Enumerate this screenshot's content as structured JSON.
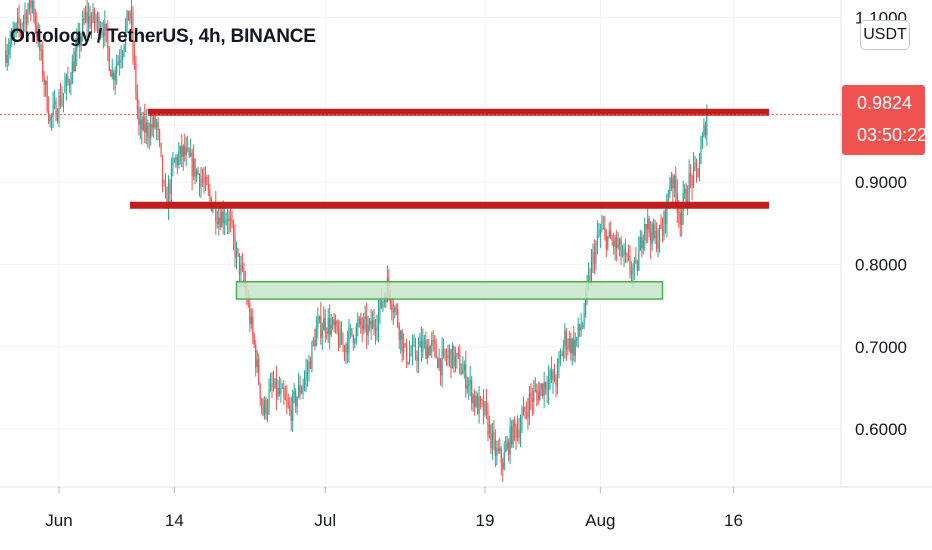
{
  "header": {
    "symbol_title": "Ontology / TetherUS, 4h, BINANCE",
    "currency_button": "USDT"
  },
  "last_price": {
    "price": "0.9824",
    "countdown": "03:50:22",
    "color": "#ef5350"
  },
  "colors": {
    "up_candle": "#26a69a",
    "down_candle": "#ef5350",
    "resistance_line": "#c21d1d",
    "support_zone_fill": "#c8e6c9",
    "support_zone_border": "#4caf50",
    "axis_text": "#131722",
    "gridline": "#f0f3fa"
  },
  "chart_data": {
    "type": "candlestick",
    "title": "Ontology / TetherUS, 4h, BINANCE",
    "xlabel": "",
    "ylabel": "",
    "y_range": [
      0.525,
      1.125
    ],
    "y_ticks": [
      {
        "label": "1.1000",
        "value": 1.1
      },
      {
        "label": "0.9000",
        "value": 0.9
      },
      {
        "label": "0.8000",
        "value": 0.8
      },
      {
        "label": "0.7000",
        "value": 0.7
      },
      {
        "label": "0.6000",
        "value": 0.6
      }
    ],
    "x_ticks": [
      {
        "label": "Jun",
        "date": "2021-06-01"
      },
      {
        "label": "14",
        "date": "2021-06-14"
      },
      {
        "label": "Jul",
        "date": "2021-07-01"
      },
      {
        "label": "19",
        "date": "2021-07-19"
      },
      {
        "label": "Aug",
        "date": "2021-08-01"
      },
      {
        "label": "16",
        "date": "2021-08-16"
      }
    ],
    "price_path": [
      [
        "2021-05-26",
        1.06
      ],
      [
        "2021-05-29",
        1.12
      ],
      [
        "2021-05-31",
        0.975
      ],
      [
        "2021-06-02",
        1.02
      ],
      [
        "2021-06-04",
        1.1
      ],
      [
        "2021-06-06",
        1.09
      ],
      [
        "2021-06-07",
        1.03
      ],
      [
        "2021-06-08",
        1.06
      ],
      [
        "2021-06-09",
        1.11
      ],
      [
        "2021-06-10",
        0.965
      ],
      [
        "2021-06-11",
        0.965
      ],
      [
        "2021-06-12",
        0.97
      ],
      [
        "2021-06-13",
        0.87
      ],
      [
        "2021-06-14",
        0.925
      ],
      [
        "2021-06-15",
        0.935
      ],
      [
        "2021-06-17",
        0.905
      ],
      [
        "2021-06-18",
        0.88
      ],
      [
        "2021-06-19",
        0.86
      ],
      [
        "2021-06-20",
        0.86
      ],
      [
        "2021-06-21",
        0.81
      ],
      [
        "2021-06-22",
        0.77
      ],
      [
        "2021-06-23",
        0.7
      ],
      [
        "2021-06-24",
        0.62
      ],
      [
        "2021-06-25",
        0.65
      ],
      [
        "2021-06-26",
        0.64
      ],
      [
        "2021-06-27",
        0.62
      ],
      [
        "2021-06-28",
        0.645
      ],
      [
        "2021-06-29",
        0.67
      ],
      [
        "2021-06-30",
        0.72
      ],
      [
        "2021-07-01",
        0.73
      ],
      [
        "2021-07-02",
        0.72
      ],
      [
        "2021-07-03",
        0.7
      ],
      [
        "2021-07-04",
        0.715
      ],
      [
        "2021-07-05",
        0.725
      ],
      [
        "2021-07-06",
        0.72
      ],
      [
        "2021-07-07",
        0.74
      ],
      [
        "2021-07-08",
        0.775
      ],
      [
        "2021-07-09",
        0.74
      ],
      [
        "2021-07-10",
        0.69
      ],
      [
        "2021-07-11",
        0.69
      ],
      [
        "2021-07-12",
        0.7
      ],
      [
        "2021-07-13",
        0.7
      ],
      [
        "2021-07-14",
        0.68
      ],
      [
        "2021-07-15",
        0.69
      ],
      [
        "2021-07-16",
        0.68
      ],
      [
        "2021-07-17",
        0.66
      ],
      [
        "2021-07-18",
        0.63
      ],
      [
        "2021-07-19",
        0.62
      ],
      [
        "2021-07-20",
        0.575
      ],
      [
        "2021-07-21",
        0.56
      ],
      [
        "2021-07-22",
        0.595
      ],
      [
        "2021-07-23",
        0.605
      ],
      [
        "2021-07-24",
        0.635
      ],
      [
        "2021-07-25",
        0.645
      ],
      [
        "2021-07-26",
        0.66
      ],
      [
        "2021-07-27",
        0.66
      ],
      [
        "2021-07-28",
        0.71
      ],
      [
        "2021-07-29",
        0.7
      ],
      [
        "2021-07-30",
        0.73
      ],
      [
        "2021-07-31",
        0.8
      ],
      [
        "2021-08-01",
        0.84
      ],
      [
        "2021-08-02",
        0.83
      ],
      [
        "2021-08-03",
        0.82
      ],
      [
        "2021-08-04",
        0.8
      ],
      [
        "2021-08-05",
        0.79
      ],
      [
        "2021-08-06",
        0.855
      ],
      [
        "2021-08-07",
        0.83
      ],
      [
        "2021-08-08",
        0.84
      ],
      [
        "2021-08-09",
        0.91
      ],
      [
        "2021-08-10",
        0.86
      ],
      [
        "2021-08-11",
        0.9
      ],
      [
        "2021-08-12",
        0.915
      ],
      [
        "2021-08-13",
        0.9824
      ]
    ],
    "horizontal_levels": [
      {
        "kind": "resistance",
        "price": 0.985,
        "from": "2021-06-11",
        "to": "2021-08-20"
      },
      {
        "kind": "resistance",
        "price": 0.872,
        "from": "2021-06-09",
        "to": "2021-08-20"
      }
    ],
    "zones": [
      {
        "kind": "support",
        "price_low": 0.758,
        "price_high": 0.779,
        "from": "2021-06-21",
        "to": "2021-08-08"
      }
    ]
  }
}
